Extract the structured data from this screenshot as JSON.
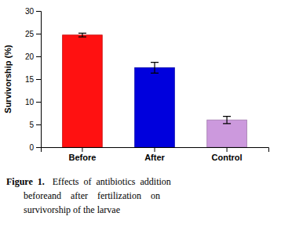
{
  "chart_data": {
    "type": "bar",
    "categories": [
      "Before",
      "After",
      "Control"
    ],
    "values": [
      24.7,
      17.5,
      6.0
    ],
    "errors": [
      0.4,
      1.2,
      0.8
    ],
    "colors": [
      "#ff1111",
      "#0000dd",
      "#cc99dd"
    ],
    "ylabel": "Survivorship (%)",
    "ylim": [
      0,
      30
    ],
    "yticks": [
      0,
      5,
      10,
      15,
      20,
      25,
      30
    ],
    "grid": false,
    "annotations": [
      "Figure  1.",
      "Effects  of  antibiotics  addition",
      "beforeand    after    fertilization    on",
      "survivorship of the larvae"
    ]
  }
}
